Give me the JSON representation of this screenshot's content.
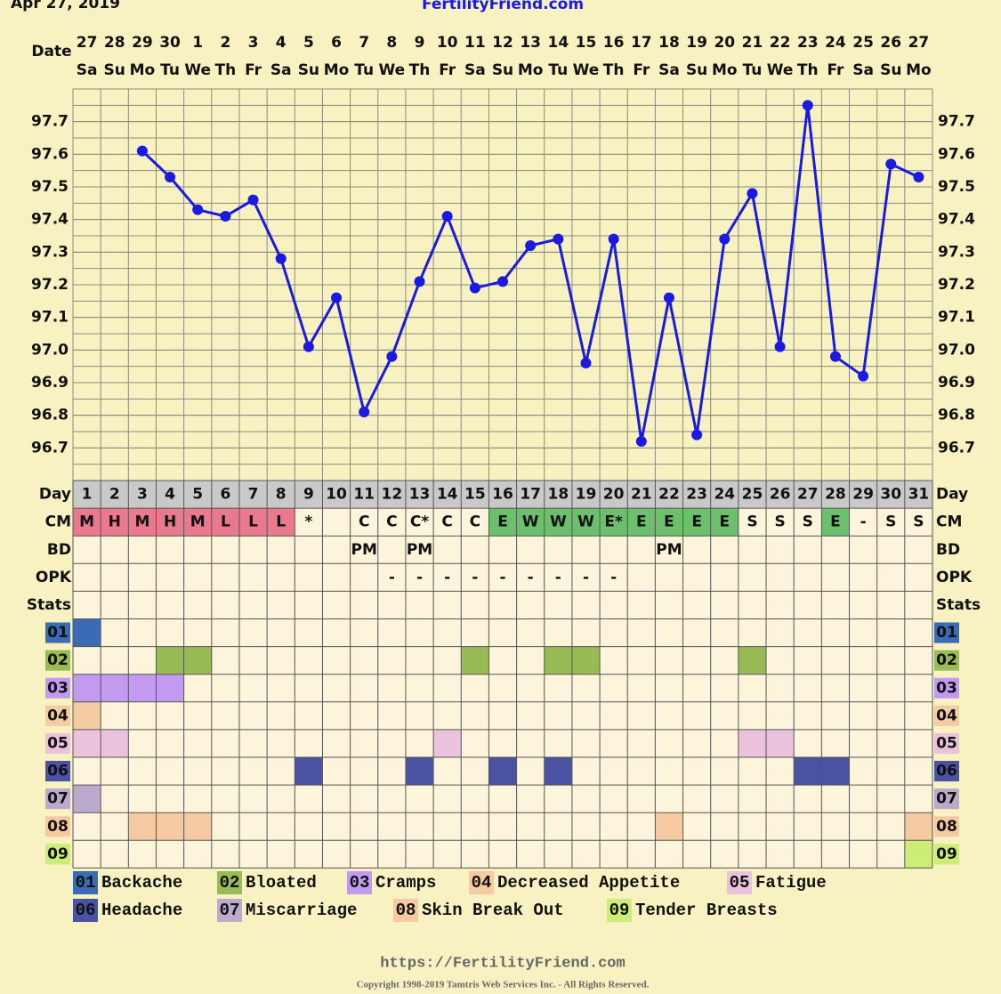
{
  "header": {
    "date": "Apr 27, 2019",
    "site": "FertilityFriend.com"
  },
  "chart_data": {
    "type": "line",
    "x_label": "Date",
    "dates": [
      "27",
      "28",
      "29",
      "30",
      "1",
      "2",
      "3",
      "4",
      "5",
      "6",
      "7",
      "8",
      "9",
      "10",
      "11",
      "12",
      "13",
      "14",
      "15",
      "16",
      "17",
      "18",
      "19",
      "20",
      "21",
      "22",
      "23",
      "24",
      "25",
      "26",
      "27"
    ],
    "weekdays": [
      "Sa",
      "Su",
      "Mo",
      "Tu",
      "We",
      "Th",
      "Fr",
      "Sa",
      "Su",
      "Mo",
      "Tu",
      "We",
      "Th",
      "Fr",
      "Sa",
      "Su",
      "Mo",
      "Tu",
      "We",
      "Th",
      "Fr",
      "Sa",
      "Su",
      "Mo",
      "Tu",
      "We",
      "Th",
      "Fr",
      "Sa",
      "Su",
      "Mo"
    ],
    "series": [
      {
        "color": "#1a1ae0",
        "values": [
          null,
          null,
          97.61,
          97.53,
          97.43,
          97.41,
          97.46,
          97.28,
          97.01,
          97.16,
          96.81,
          96.98,
          97.21,
          97.41,
          97.19,
          97.21,
          97.32,
          97.34,
          96.96,
          97.34,
          96.72,
          97.16,
          96.74,
          97.34,
          97.48,
          97.01,
          97.75,
          96.98,
          96.92,
          97.57,
          97.53
        ]
      }
    ],
    "ylim": [
      96.6,
      97.8
    ],
    "yticks": [
      96.7,
      96.8,
      96.9,
      {
        "value": 97,
        "label": "97.0"
      },
      97.1,
      97.2,
      97.3,
      97.4,
      97.5,
      97.6,
      97.7
    ],
    "grid": true
  },
  "table": {
    "labels": {
      "day": "Day",
      "cm": "CM",
      "bd": "BD",
      "opk": "OPK",
      "stats": "Stats"
    },
    "days": [
      1,
      2,
      3,
      4,
      5,
      6,
      7,
      8,
      9,
      10,
      11,
      12,
      13,
      14,
      15,
      16,
      17,
      18,
      19,
      20,
      21,
      22,
      23,
      24,
      25,
      26,
      27,
      28,
      29,
      30,
      31
    ],
    "cm": [
      "M",
      "H",
      "M",
      "H",
      "M",
      "L",
      "L",
      "L",
      "*",
      null,
      "C",
      "C",
      "C*",
      "C",
      "C",
      "E",
      "W",
      "W",
      "W",
      "E*",
      "E",
      "E",
      "E",
      "E",
      "S",
      "S",
      "S",
      "E",
      "-",
      "S",
      "S"
    ],
    "cm_colors": {
      "M": "#e9798f",
      "H": "#e9798f",
      "L": "#e9798f",
      "E": "#6cbf6c",
      "W": "#6cbf6c",
      "E*": "#6cbf6c"
    },
    "bd": [
      null,
      null,
      null,
      null,
      null,
      null,
      null,
      null,
      null,
      null,
      "PM",
      null,
      "PM",
      null,
      null,
      null,
      null,
      null,
      null,
      null,
      null,
      "PM",
      null,
      null,
      null,
      null,
      null,
      null,
      null,
      null,
      null
    ],
    "opk": [
      null,
      null,
      null,
      null,
      null,
      null,
      null,
      null,
      null,
      null,
      null,
      "-",
      "-",
      "-",
      "-",
      "-",
      "-",
      "-",
      "-",
      "-",
      null,
      null,
      null,
      null,
      null,
      null,
      null,
      null,
      null,
      null,
      null
    ]
  },
  "symptoms": [
    {
      "code": "01",
      "name": "Backache",
      "color": "#3b6bb3",
      "days": [
        1
      ]
    },
    {
      "code": "02",
      "name": "Bloated",
      "color": "#99bb55",
      "days": [
        4,
        5,
        15,
        18,
        19,
        25
      ]
    },
    {
      "code": "03",
      "name": "Cramps",
      "color": "#c29af0",
      "days": [
        1,
        2,
        3,
        4
      ]
    },
    {
      "code": "04",
      "name": "Decreased Appetite",
      "color": "#f5cba2",
      "days": [
        1
      ]
    },
    {
      "code": "05",
      "name": "Fatigue",
      "color": "#eac2dc",
      "days": [
        1,
        2,
        14,
        25,
        26
      ]
    },
    {
      "code": "06",
      "name": "Headache",
      "color": "#4a52a2",
      "days": [
        9,
        13,
        16,
        18,
        27,
        28
      ]
    },
    {
      "code": "07",
      "name": "Miscarriage",
      "color": "#bcaacc",
      "days": [
        1
      ]
    },
    {
      "code": "08",
      "name": "Skin Break Out",
      "color": "#f5c9a2",
      "days": [
        3,
        4,
        5,
        22,
        31
      ]
    },
    {
      "code": "09",
      "name": "Tender Breasts",
      "color": "#ccee77",
      "days": [
        31
      ]
    }
  ],
  "footer": {
    "url": "https://FertilityFriend.com",
    "copyright": "Copyright 1998-2019 Tamtris Web Services Inc. - All Rights Reserved."
  }
}
